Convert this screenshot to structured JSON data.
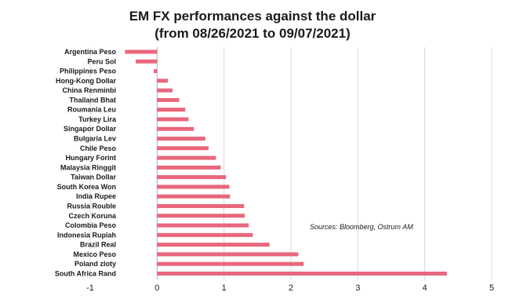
{
  "chart_data": {
    "type": "bar",
    "orientation": "horizontal",
    "title_lines": [
      "EM FX performances against the dollar",
      "(from 08/26/2021 to 09/07/2021)"
    ],
    "categories": [
      "Argentina Peso",
      "Peru Sol",
      "Philippines Peso",
      "Hong-Kong Dollar",
      "China Renminbi",
      "Thailand Bhat",
      "Roumania Leu",
      "Turkey Lira",
      "Singapor Dollar",
      "Bulgaria Lev",
      "Chile Peso",
      "Hungary Forint",
      "Malaysia Ringgit",
      "Taiwan Dollar",
      "South Korea Won",
      "India Rupee",
      "Russia Rouble",
      "Czech Koruna",
      "Colombia Peso",
      "Indonesia Rupiah",
      "Brazil Real",
      "Mexico Peso",
      "Poland zloty",
      "South Africa Rand"
    ],
    "values": [
      -0.48,
      -0.32,
      -0.05,
      0.16,
      0.23,
      0.33,
      0.42,
      0.47,
      0.55,
      0.72,
      0.77,
      0.88,
      0.95,
      1.03,
      1.08,
      1.09,
      1.3,
      1.31,
      1.37,
      1.43,
      1.68,
      2.11,
      2.19,
      4.33
    ],
    "xticks": [
      "-1",
      "0",
      "1",
      "2",
      "3",
      "4",
      "5"
    ],
    "xlim": [
      -1,
      5
    ],
    "grid": "vertical",
    "bar_color": "#e8677c",
    "source_note": "Sources: Bloomberg, Ostrum AM"
  }
}
